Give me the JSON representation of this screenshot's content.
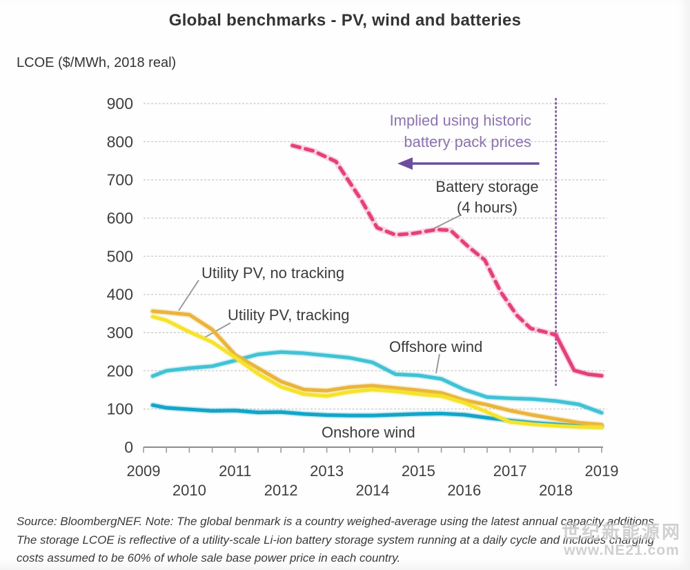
{
  "title": "Global benchmarks - PV, wind and batteries",
  "y_axis_title": "LCOE ($/MWh, 2018 real)",
  "annotations": {
    "implied_line1": "Implied using historic",
    "implied_line2": "battery pack prices",
    "battery_label_line1": "Battery storage",
    "battery_label_line2": "(4 hours)",
    "pv_no_tracking_label": "Utility PV, no tracking",
    "pv_tracking_label": "Utility PV, tracking",
    "offshore_label": "Offshore wind",
    "onshore_label": "Onshore wind"
  },
  "footer": {
    "source_text": "Source: BloombergNEF. Note: The global benmark is a country weighed-average using the latest annual capacity additions. The storage LCOE is reflective of a utility-scale Li-ion battery storage system running at a daily cycle and includes charging costs assumed to be 60% of whole sale base power price in each country."
  },
  "watermark": {
    "line1": "世纪新能源网",
    "line2": "www.NE21.com"
  },
  "chart_data": {
    "type": "line",
    "title": "Global benchmarks - PV, wind and batteries",
    "ylabel": "LCOE ($/MWh, 2018 real)",
    "xlabel": "",
    "grid": true,
    "legend_position": "inline-labels",
    "ylim": [
      0,
      900
    ],
    "y_ticks": [
      0,
      100,
      200,
      300,
      400,
      500,
      600,
      700,
      800,
      900
    ],
    "x_range": [
      2009,
      2019
    ],
    "x_tick_interval": 0.5,
    "x_labels_row1": [
      "2009",
      "2011",
      "2013",
      "2015",
      "2017",
      "2019"
    ],
    "x_labels_row2": [
      "2010",
      "2012",
      "2014",
      "2016",
      "2018"
    ],
    "vline_year": 2018,
    "accent_purple": "#6c4e9f",
    "purple_text": "#8c74ae",
    "grid_color": "#cccccc",
    "axis_color": "#8c8c8c",
    "series": [
      {
        "id": "offshore-wind",
        "name": "Offshore wind",
        "color": "#41c2d5",
        "style": "solid",
        "points": [
          [
            2009.2,
            186
          ],
          [
            2009.5,
            200
          ],
          [
            2010,
            207
          ],
          [
            2010.5,
            212
          ],
          [
            2011,
            227
          ],
          [
            2011.5,
            243
          ],
          [
            2012,
            249
          ],
          [
            2012.5,
            246
          ],
          [
            2013,
            240
          ],
          [
            2013.5,
            234
          ],
          [
            2014,
            222
          ],
          [
            2014.5,
            191
          ],
          [
            2015,
            188
          ],
          [
            2015.5,
            179
          ],
          [
            2016,
            151
          ],
          [
            2016.5,
            131
          ],
          [
            2017,
            128
          ],
          [
            2017.5,
            126
          ],
          [
            2018,
            121
          ],
          [
            2018.5,
            112
          ],
          [
            2019,
            90
          ]
        ]
      },
      {
        "id": "onshore-wind",
        "name": "Onshore wind",
        "color": "#12a5c9",
        "style": "solid",
        "points": [
          [
            2009.2,
            110
          ],
          [
            2009.5,
            103
          ],
          [
            2010,
            99
          ],
          [
            2010.5,
            95
          ],
          [
            2011,
            96
          ],
          [
            2011.5,
            91
          ],
          [
            2012,
            92
          ],
          [
            2012.5,
            87
          ],
          [
            2013,
            84
          ],
          [
            2013.5,
            83
          ],
          [
            2014,
            83
          ],
          [
            2014.5,
            85
          ],
          [
            2015,
            87
          ],
          [
            2015.5,
            88
          ],
          [
            2016,
            85
          ],
          [
            2016.5,
            77
          ],
          [
            2017,
            70
          ],
          [
            2017.5,
            64
          ],
          [
            2018,
            60
          ],
          [
            2018.5,
            56
          ],
          [
            2019,
            54
          ]
        ]
      },
      {
        "id": "pv-no-tracking",
        "name": "Utility PV, no tracking",
        "color": "#eab43c",
        "style": "solid",
        "points": [
          [
            2009.2,
            356
          ],
          [
            2009.5,
            353
          ],
          [
            2010,
            347
          ],
          [
            2010.5,
            308
          ],
          [
            2011,
            242
          ],
          [
            2011.5,
            207
          ],
          [
            2012,
            172
          ],
          [
            2012.5,
            151
          ],
          [
            2013,
            148
          ],
          [
            2013.5,
            157
          ],
          [
            2014,
            161
          ],
          [
            2014.5,
            155
          ],
          [
            2015,
            149
          ],
          [
            2015.5,
            142
          ],
          [
            2016,
            123
          ],
          [
            2016.5,
            111
          ],
          [
            2017,
            96
          ],
          [
            2017.5,
            84
          ],
          [
            2018,
            74
          ],
          [
            2018.5,
            64
          ],
          [
            2019,
            59
          ]
        ]
      },
      {
        "id": "pv-tracking",
        "name": "Utility PV, tracking",
        "color": "#f5e32c",
        "style": "solid",
        "points": [
          [
            2009.2,
            342
          ],
          [
            2009.5,
            332
          ],
          [
            2010,
            302
          ],
          [
            2010.5,
            275
          ],
          [
            2011,
            235
          ],
          [
            2011.5,
            192
          ],
          [
            2012,
            158
          ],
          [
            2012.5,
            139
          ],
          [
            2013,
            134
          ],
          [
            2013.5,
            145
          ],
          [
            2014,
            151
          ],
          [
            2014.5,
            146
          ],
          [
            2015,
            139
          ],
          [
            2015.5,
            134
          ],
          [
            2016,
            116
          ],
          [
            2016.5,
            92
          ],
          [
            2017,
            66
          ],
          [
            2017.5,
            60
          ],
          [
            2018,
            56
          ],
          [
            2018.5,
            53
          ],
          [
            2019,
            52
          ]
        ]
      },
      {
        "id": "battery-implied",
        "name": "Battery storage (4 hours) - implied using historic battery pack prices",
        "color": "#e5407c",
        "style": "dashed",
        "points": [
          [
            2012.25,
            790
          ],
          [
            2012.7,
            776
          ],
          [
            2013.2,
            748
          ],
          [
            2013.75,
            648
          ],
          [
            2014.1,
            575
          ],
          [
            2014.5,
            556
          ],
          [
            2014.9,
            560
          ],
          [
            2015.4,
            570
          ],
          [
            2015.7,
            568
          ],
          [
            2016.1,
            524
          ],
          [
            2016.45,
            490
          ],
          [
            2016.8,
            406
          ],
          [
            2017.15,
            345
          ],
          [
            2017.45,
            311
          ],
          [
            2017.75,
            302
          ],
          [
            2018,
            294
          ]
        ]
      },
      {
        "id": "battery-observed",
        "name": "Battery storage (4 hours)",
        "color": "#e5407c",
        "style": "solid",
        "points": [
          [
            2018,
            294
          ],
          [
            2018.4,
            201
          ],
          [
            2018.7,
            191
          ],
          [
            2019,
            187
          ]
        ]
      }
    ]
  }
}
